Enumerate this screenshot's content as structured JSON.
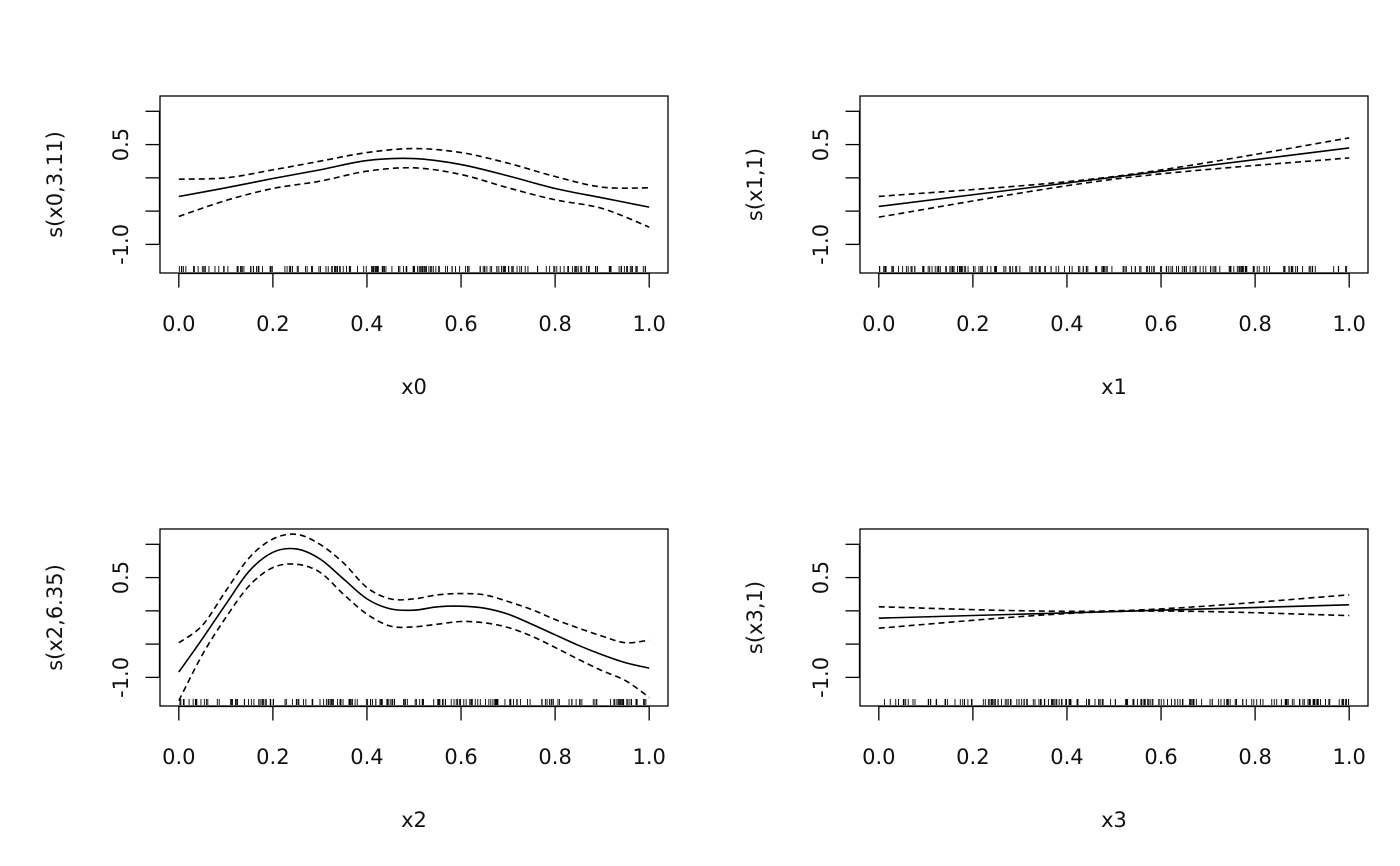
{
  "chart_data": [
    {
      "type": "line",
      "xlabel": "x0",
      "ylabel": "s(x0,3.11)",
      "xlim": [
        -0.04,
        1.04
      ],
      "ylim": [
        -1.43,
        1.23
      ],
      "x_ticks": [
        0.0,
        0.2,
        0.4,
        0.6,
        0.8,
        1.0
      ],
      "x_tick_labels": [
        "0.0",
        "0.2",
        "0.4",
        "0.6",
        "0.8",
        "1.0"
      ],
      "y_ticks": [
        -1.0,
        -0.5,
        0.0,
        0.5,
        1.0
      ],
      "y_tick_labels": [
        "-1.0",
        "",
        "",
        "0.5",
        ""
      ],
      "grid": false,
      "rug": true,
      "series": [
        {
          "line": "solid",
          "x": [
            0.0,
            0.1,
            0.2,
            0.3,
            0.4,
            0.5,
            0.6,
            0.7,
            0.8,
            0.9,
            1.0
          ],
          "y": [
            -0.28,
            -0.15,
            -0.01,
            0.12,
            0.26,
            0.29,
            0.2,
            0.03,
            -0.16,
            -0.3,
            -0.44
          ]
        },
        {
          "line": "dashed",
          "x": [
            0.0,
            0.1,
            0.2,
            0.3,
            0.4,
            0.5,
            0.6,
            0.7,
            0.8,
            0.9,
            1.0
          ],
          "y": [
            -0.02,
            0.0,
            0.12,
            0.25,
            0.38,
            0.44,
            0.38,
            0.22,
            0.02,
            -0.14,
            -0.15
          ]
        },
        {
          "line": "dashed",
          "x": [
            0.0,
            0.1,
            0.2,
            0.3,
            0.4,
            0.5,
            0.6,
            0.7,
            0.8,
            0.9,
            1.0
          ],
          "y": [
            -0.58,
            -0.34,
            -0.16,
            -0.05,
            0.1,
            0.15,
            0.05,
            -0.15,
            -0.33,
            -0.46,
            -0.74
          ]
        }
      ]
    },
    {
      "type": "line",
      "xlabel": "x1",
      "ylabel": "s(x1,1)",
      "xlim": [
        -0.04,
        1.04
      ],
      "ylim": [
        -1.43,
        1.23
      ],
      "x_ticks": [
        0.0,
        0.2,
        0.4,
        0.6,
        0.8,
        1.0
      ],
      "x_tick_labels": [
        "0.0",
        "0.2",
        "0.4",
        "0.6",
        "0.8",
        "1.0"
      ],
      "y_ticks": [
        -1.0,
        -0.5,
        0.0,
        0.5,
        1.0
      ],
      "y_tick_labels": [
        "-1.0",
        "",
        "",
        "0.5",
        ""
      ],
      "grid": false,
      "rug": true,
      "series": [
        {
          "line": "solid",
          "x": [
            0.0,
            1.0
          ],
          "y": [
            -0.43,
            0.45
          ]
        },
        {
          "line": "dashed",
          "x": [
            0.0,
            0.5,
            1.0
          ],
          "y": [
            -0.28,
            0.02,
            0.6
          ]
        },
        {
          "line": "dashed",
          "x": [
            0.0,
            0.5,
            1.0
          ],
          "y": [
            -0.59,
            -0.02,
            0.3
          ]
        }
      ]
    },
    {
      "type": "line",
      "xlabel": "x2",
      "ylabel": "s(x2,6.35)",
      "xlim": [
        -0.04,
        1.04
      ],
      "ylim": [
        -1.43,
        1.23
      ],
      "x_ticks": [
        0.0,
        0.2,
        0.4,
        0.6,
        0.8,
        1.0
      ],
      "x_tick_labels": [
        "0.0",
        "0.2",
        "0.4",
        "0.6",
        "0.8",
        "1.0"
      ],
      "y_ticks": [
        -1.0,
        -0.5,
        0.0,
        0.5,
        1.0
      ],
      "y_tick_labels": [
        "-1.0",
        "",
        "",
        "0.5",
        ""
      ],
      "grid": false,
      "rug": true,
      "series": [
        {
          "line": "solid",
          "x": [
            0.0,
            0.05,
            0.1,
            0.15,
            0.2,
            0.25,
            0.3,
            0.35,
            0.4,
            0.45,
            0.5,
            0.55,
            0.6,
            0.65,
            0.7,
            0.75,
            0.8,
            0.85,
            0.9,
            0.95,
            1.0
          ],
          "y": [
            -0.92,
            -0.42,
            0.1,
            0.6,
            0.88,
            0.93,
            0.78,
            0.48,
            0.18,
            0.03,
            0.01,
            0.06,
            0.07,
            0.04,
            -0.05,
            -0.2,
            -0.36,
            -0.52,
            -0.66,
            -0.78,
            -0.86
          ]
        },
        {
          "line": "dashed",
          "x": [
            0.0,
            0.05,
            0.1,
            0.15,
            0.2,
            0.25,
            0.3,
            0.35,
            0.4,
            0.45,
            0.5,
            0.55,
            0.6,
            0.65,
            0.7,
            0.75,
            0.8,
            0.85,
            0.9,
            0.95,
            1.0
          ],
          "y": [
            -0.48,
            -0.22,
            0.3,
            0.8,
            1.08,
            1.15,
            1.0,
            0.72,
            0.35,
            0.18,
            0.18,
            0.24,
            0.26,
            0.24,
            0.14,
            0.02,
            -0.13,
            -0.26,
            -0.38,
            -0.48,
            -0.44
          ]
        },
        {
          "line": "dashed",
          "x": [
            0.0,
            0.05,
            0.1,
            0.15,
            0.2,
            0.25,
            0.3,
            0.35,
            0.4,
            0.45,
            0.5,
            0.55,
            0.6,
            0.65,
            0.7,
            0.75,
            0.8,
            0.85,
            0.9,
            0.95,
            1.0
          ],
          "y": [
            -1.35,
            -0.66,
            -0.1,
            0.38,
            0.65,
            0.7,
            0.58,
            0.25,
            -0.05,
            -0.23,
            -0.24,
            -0.2,
            -0.16,
            -0.18,
            -0.25,
            -0.38,
            -0.55,
            -0.73,
            -0.9,
            -1.05,
            -1.3
          ]
        }
      ]
    },
    {
      "type": "line",
      "xlabel": "x3",
      "ylabel": "s(x3,1)",
      "xlim": [
        -0.04,
        1.04
      ],
      "ylim": [
        -1.43,
        1.23
      ],
      "x_ticks": [
        0.0,
        0.2,
        0.4,
        0.6,
        0.8,
        1.0
      ],
      "x_tick_labels": [
        "0.0",
        "0.2",
        "0.4",
        "0.6",
        "0.8",
        "1.0"
      ],
      "y_ticks": [
        -1.0,
        -0.5,
        0.0,
        0.5,
        1.0
      ],
      "y_tick_labels": [
        "-1.0",
        "",
        "",
        "0.5",
        ""
      ],
      "grid": false,
      "rug": true,
      "series": [
        {
          "line": "solid",
          "x": [
            0.0,
            1.0
          ],
          "y": [
            -0.11,
            0.09
          ]
        },
        {
          "line": "dashed",
          "x": [
            0.0,
            0.5,
            1.0
          ],
          "y": [
            0.06,
            0.0,
            0.24
          ]
        },
        {
          "line": "dashed",
          "x": [
            0.0,
            0.5,
            1.0
          ],
          "y": [
            -0.26,
            -0.01,
            -0.07
          ]
        }
      ]
    }
  ]
}
